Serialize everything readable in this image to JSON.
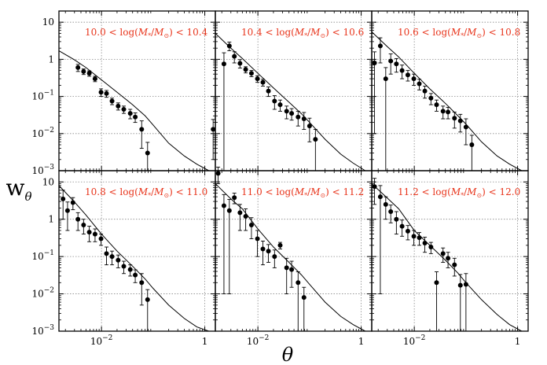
{
  "chart_data": {
    "type": "scatter",
    "xlabel": "θ",
    "ylabel": "w",
    "ylabel_sub": "θ",
    "xscale": "log",
    "yscale": "log",
    "xlim": [
      0.0015,
      1.6
    ],
    "ylim": [
      0.001,
      20
    ],
    "grid": true,
    "x_ticks": [
      {
        "v": 0.01,
        "base": "10",
        "exp": "−2"
      },
      {
        "v": 1,
        "base": "1",
        "exp": ""
      }
    ],
    "y_ticks": [
      {
        "v": 0.001,
        "base": "10",
        "exp": "−3"
      },
      {
        "v": 0.01,
        "base": "10",
        "exp": "−2"
      },
      {
        "v": 0.1,
        "base": "10",
        "exp": "−1"
      },
      {
        "v": 1,
        "base": "1",
        "exp": ""
      },
      {
        "v": 10,
        "base": "10",
        "exp": ""
      }
    ],
    "panels": [
      {
        "title": {
          "lo": "10.0",
          "hi": "10.4"
        },
        "points": [
          [
            0.0035,
            0.6,
            0.13
          ],
          [
            0.0045,
            0.47,
            0.08
          ],
          [
            0.0058,
            0.42,
            0.07
          ],
          [
            0.0075,
            0.3,
            0.05
          ],
          [
            0.0098,
            0.13,
            0.03
          ],
          [
            0.0125,
            0.12,
            0.025
          ],
          [
            0.016,
            0.075,
            0.015
          ],
          [
            0.021,
            0.055,
            0.012
          ],
          [
            0.027,
            0.045,
            0.01
          ],
          [
            0.036,
            0.035,
            0.01
          ],
          [
            0.045,
            0.028,
            0.008
          ],
          [
            0.06,
            0.013,
            0.009
          ],
          [
            0.078,
            0.003,
            0.0028
          ],
          [
            1.45,
            0.013,
            0.011
          ]
        ],
        "model": [
          [
            0.0015,
            1.7
          ],
          [
            0.003,
            0.97
          ],
          [
            0.005,
            0.6
          ],
          [
            0.01,
            0.28
          ],
          [
            0.02,
            0.13
          ],
          [
            0.04,
            0.06
          ],
          [
            0.07,
            0.03
          ],
          [
            0.1,
            0.017
          ],
          [
            0.2,
            0.0055
          ],
          [
            0.4,
            0.0025
          ],
          [
            0.7,
            0.0015
          ],
          [
            1.2,
            0.001
          ]
        ]
      },
      {
        "title": {
          "lo": "10.4",
          "hi": "10.6"
        },
        "points": [
          [
            0.0022,
            0.75,
            0.749
          ],
          [
            0.0028,
            2.3,
            0.6
          ],
          [
            0.0035,
            1.2,
            0.4
          ],
          [
            0.0045,
            0.78,
            0.2
          ],
          [
            0.0058,
            0.53,
            0.1
          ],
          [
            0.0075,
            0.42,
            0.08
          ],
          [
            0.0098,
            0.3,
            0.06
          ],
          [
            0.0125,
            0.24,
            0.05
          ],
          [
            0.016,
            0.14,
            0.04
          ],
          [
            0.021,
            0.075,
            0.03
          ],
          [
            0.027,
            0.06,
            0.02
          ],
          [
            0.036,
            0.04,
            0.015
          ],
          [
            0.045,
            0.035,
            0.012
          ],
          [
            0.06,
            0.028,
            0.012
          ],
          [
            0.078,
            0.025,
            0.012
          ],
          [
            0.1,
            0.016,
            0.01
          ],
          [
            0.13,
            0.007,
            0.006
          ]
        ],
        "model": [
          [
            0.0015,
            5
          ],
          [
            0.003,
            2
          ],
          [
            0.005,
            1.05
          ],
          [
            0.01,
            0.42
          ],
          [
            0.02,
            0.17
          ],
          [
            0.04,
            0.07
          ],
          [
            0.07,
            0.034
          ],
          [
            0.1,
            0.02
          ],
          [
            0.2,
            0.007
          ],
          [
            0.4,
            0.0028
          ],
          [
            0.7,
            0.0016
          ],
          [
            1.2,
            0.001
          ]
        ]
      },
      {
        "title": {
          "lo": "10.6",
          "hi": "10.8"
        },
        "points": [
          [
            0.0017,
            0.8,
            0.79
          ],
          [
            0.0022,
            2.3,
            1.5
          ],
          [
            0.0028,
            0.3,
            0.299
          ],
          [
            0.0035,
            0.9,
            0.5
          ],
          [
            0.0045,
            0.75,
            0.3
          ],
          [
            0.0058,
            0.5,
            0.2
          ],
          [
            0.0075,
            0.38,
            0.12
          ],
          [
            0.0098,
            0.3,
            0.1
          ],
          [
            0.0125,
            0.22,
            0.07
          ],
          [
            0.016,
            0.14,
            0.05
          ],
          [
            0.021,
            0.09,
            0.03
          ],
          [
            0.027,
            0.06,
            0.02
          ],
          [
            0.036,
            0.04,
            0.015
          ],
          [
            0.045,
            0.038,
            0.013
          ],
          [
            0.06,
            0.026,
            0.012
          ],
          [
            0.078,
            0.022,
            0.011
          ],
          [
            0.1,
            0.015,
            0.01
          ],
          [
            0.13,
            0.005,
            0.004
          ]
        ],
        "model": [
          [
            0.0015,
            5.5
          ],
          [
            0.003,
            2.2
          ],
          [
            0.005,
            1.15
          ],
          [
            0.01,
            0.42
          ],
          [
            0.02,
            0.16
          ],
          [
            0.04,
            0.065
          ],
          [
            0.07,
            0.03
          ],
          [
            0.1,
            0.018
          ],
          [
            0.2,
            0.006
          ],
          [
            0.4,
            0.0025
          ],
          [
            0.7,
            0.0015
          ],
          [
            1.2,
            0.001
          ]
        ]
      },
      {
        "title": {
          "lo": "10.8",
          "hi": "11.0"
        },
        "points": [
          [
            0.0018,
            3.5,
            2.5
          ],
          [
            0.0022,
            1.7,
            1.2
          ],
          [
            0.0028,
            2.8,
            1.0
          ],
          [
            0.0035,
            1.0,
            0.5
          ],
          [
            0.0045,
            0.7,
            0.3
          ],
          [
            0.0058,
            0.45,
            0.2
          ],
          [
            0.0075,
            0.4,
            0.15
          ],
          [
            0.0098,
            0.3,
            0.1
          ],
          [
            0.0125,
            0.12,
            0.06
          ],
          [
            0.016,
            0.1,
            0.04
          ],
          [
            0.021,
            0.08,
            0.03
          ],
          [
            0.027,
            0.055,
            0.02
          ],
          [
            0.036,
            0.045,
            0.015
          ],
          [
            0.045,
            0.032,
            0.012
          ],
          [
            0.06,
            0.02,
            0.015
          ],
          [
            0.078,
            0.007,
            0.006
          ]
        ],
        "model": [
          [
            0.0015,
            8
          ],
          [
            0.003,
            2.9
          ],
          [
            0.005,
            1.3
          ],
          [
            0.01,
            0.4
          ],
          [
            0.02,
            0.14
          ],
          [
            0.04,
            0.055
          ],
          [
            0.07,
            0.025
          ],
          [
            0.1,
            0.014
          ],
          [
            0.2,
            0.005
          ],
          [
            0.4,
            0.0022
          ],
          [
            0.7,
            0.0013
          ],
          [
            1.2,
            0.001
          ]
        ]
      },
      {
        "title": {
          "lo": "11.0",
          "hi": "11.2"
        },
        "points": [
          [
            0.0017,
            17,
            8
          ],
          [
            0.0022,
            2.3,
            2.29
          ],
          [
            0.0028,
            1.7,
            1.69
          ],
          [
            0.0035,
            3.8,
            1.2
          ],
          [
            0.0045,
            1.5,
            1.0
          ],
          [
            0.0058,
            1.2,
            0.7
          ],
          [
            0.0075,
            0.7,
            0.4
          ],
          [
            0.0098,
            0.3,
            0.2
          ],
          [
            0.0125,
            0.16,
            0.1
          ],
          [
            0.016,
            0.14,
            0.07
          ],
          [
            0.021,
            0.1,
            0.05
          ],
          [
            0.027,
            0.2,
            0.04
          ],
          [
            0.036,
            0.05,
            0.04
          ],
          [
            0.045,
            0.045,
            0.03
          ],
          [
            0.06,
            0.02,
            0.019
          ],
          [
            0.078,
            0.008,
            0.007
          ]
        ],
        "model": [
          [
            0.0015,
            9
          ],
          [
            0.003,
            3.5
          ],
          [
            0.005,
            1.9
          ],
          [
            0.01,
            0.55
          ],
          [
            0.02,
            0.18
          ],
          [
            0.04,
            0.07
          ],
          [
            0.07,
            0.032
          ],
          [
            0.1,
            0.018
          ],
          [
            0.2,
            0.006
          ],
          [
            0.4,
            0.0025
          ],
          [
            0.7,
            0.0015
          ],
          [
            1.2,
            0.001
          ]
        ]
      },
      {
        "title": {
          "lo": "11.2",
          "hi": "12.0"
        },
        "points": [
          [
            0.0017,
            7.5,
            5
          ],
          [
            0.0022,
            4.0,
            3.99
          ],
          [
            0.0028,
            2.5,
            1.5
          ],
          [
            0.0035,
            1.6,
            0.8
          ],
          [
            0.0045,
            1.0,
            0.6
          ],
          [
            0.0058,
            0.65,
            0.3
          ],
          [
            0.0075,
            0.48,
            0.2
          ],
          [
            0.0098,
            0.35,
            0.15
          ],
          [
            0.0125,
            0.32,
            0.12
          ],
          [
            0.016,
            0.23,
            0.1
          ],
          [
            0.021,
            0.18,
            0.06
          ],
          [
            0.027,
            0.02,
            0.019
          ],
          [
            0.036,
            0.12,
            0.05
          ],
          [
            0.045,
            0.09,
            0.04
          ],
          [
            0.06,
            0.06,
            0.03
          ],
          [
            0.078,
            0.017,
            0.016
          ],
          [
            0.1,
            0.018,
            0.017
          ]
        ],
        "model": [
          [
            0.0015,
            9
          ],
          [
            0.003,
            3.7
          ],
          [
            0.005,
            1.9
          ],
          [
            0.01,
            0.5
          ],
          [
            0.02,
            0.2
          ],
          [
            0.04,
            0.08
          ],
          [
            0.07,
            0.036
          ],
          [
            0.1,
            0.02
          ],
          [
            0.2,
            0.007
          ],
          [
            0.4,
            0.0028
          ],
          [
            0.7,
            0.0015
          ],
          [
            1.2,
            0.001
          ]
        ]
      }
    ]
  }
}
